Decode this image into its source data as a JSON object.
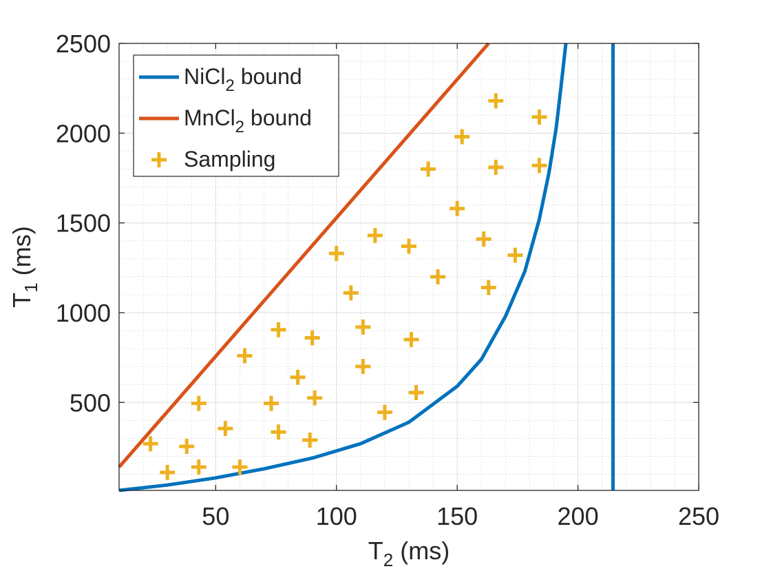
{
  "chart_data": {
    "type": "line",
    "title": "",
    "xlabel": {
      "main": "T",
      "sub": "2",
      "rest": " (ms)"
    },
    "ylabel": {
      "main": "T",
      "sub": "1",
      "rest": " (ms)"
    },
    "xlim": [
      10,
      250
    ],
    "ylim": [
      10,
      2500
    ],
    "xticks": [
      50,
      100,
      150,
      200,
      250
    ],
    "yticks": [
      500,
      1000,
      1500,
      2000,
      2500
    ],
    "grid": true,
    "minor_grid": true,
    "legend_position": "top-left",
    "series": [
      {
        "name": "NiCl2 bound",
        "legend": {
          "main": "NiCl",
          "sub": "2",
          "rest": " bound"
        },
        "type": "line",
        "color": "#0072BD",
        "x": [
          10,
          30,
          50,
          70,
          90,
          110,
          130,
          150,
          160,
          170,
          178,
          184,
          188,
          191,
          193,
          195
        ],
        "y": [
          10,
          40,
          80,
          130,
          190,
          270,
          390,
          590,
          740,
          980,
          1230,
          1520,
          1780,
          2030,
          2260,
          2500
        ]
      },
      {
        "name": "NiCl2 bound vertical",
        "type": "line",
        "color": "#0072BD",
        "x": [
          214.5,
          214.5
        ],
        "y": [
          10,
          2500
        ]
      },
      {
        "name": "MnCl2 bound",
        "legend": {
          "main": "MnCl",
          "sub": "2",
          "rest": " bound"
        },
        "type": "line",
        "color": "#D95319",
        "x": [
          10,
          163
        ],
        "y": [
          140,
          2500
        ]
      },
      {
        "name": "Sampling",
        "legend": {
          "main": "Sampling",
          "sub": "",
          "rest": ""
        },
        "type": "scatter",
        "marker": "+",
        "color": "#EDB120",
        "x": [
          166,
          184,
          152,
          138,
          166,
          184,
          150,
          161,
          174,
          116,
          130,
          100,
          142,
          163,
          106,
          76,
          90,
          111,
          131,
          62,
          111,
          84,
          43,
          73,
          91,
          133,
          120,
          23,
          38,
          54,
          76,
          89,
          30,
          43,
          60
        ],
        "y": [
          2180,
          2090,
          1980,
          1800,
          1810,
          1820,
          1580,
          1410,
          1320,
          1430,
          1370,
          1330,
          1200,
          1140,
          1110,
          905,
          860,
          920,
          850,
          760,
          700,
          640,
          495,
          495,
          525,
          555,
          445,
          270,
          255,
          355,
          335,
          290,
          110,
          140,
          140
        ]
      }
    ]
  }
}
